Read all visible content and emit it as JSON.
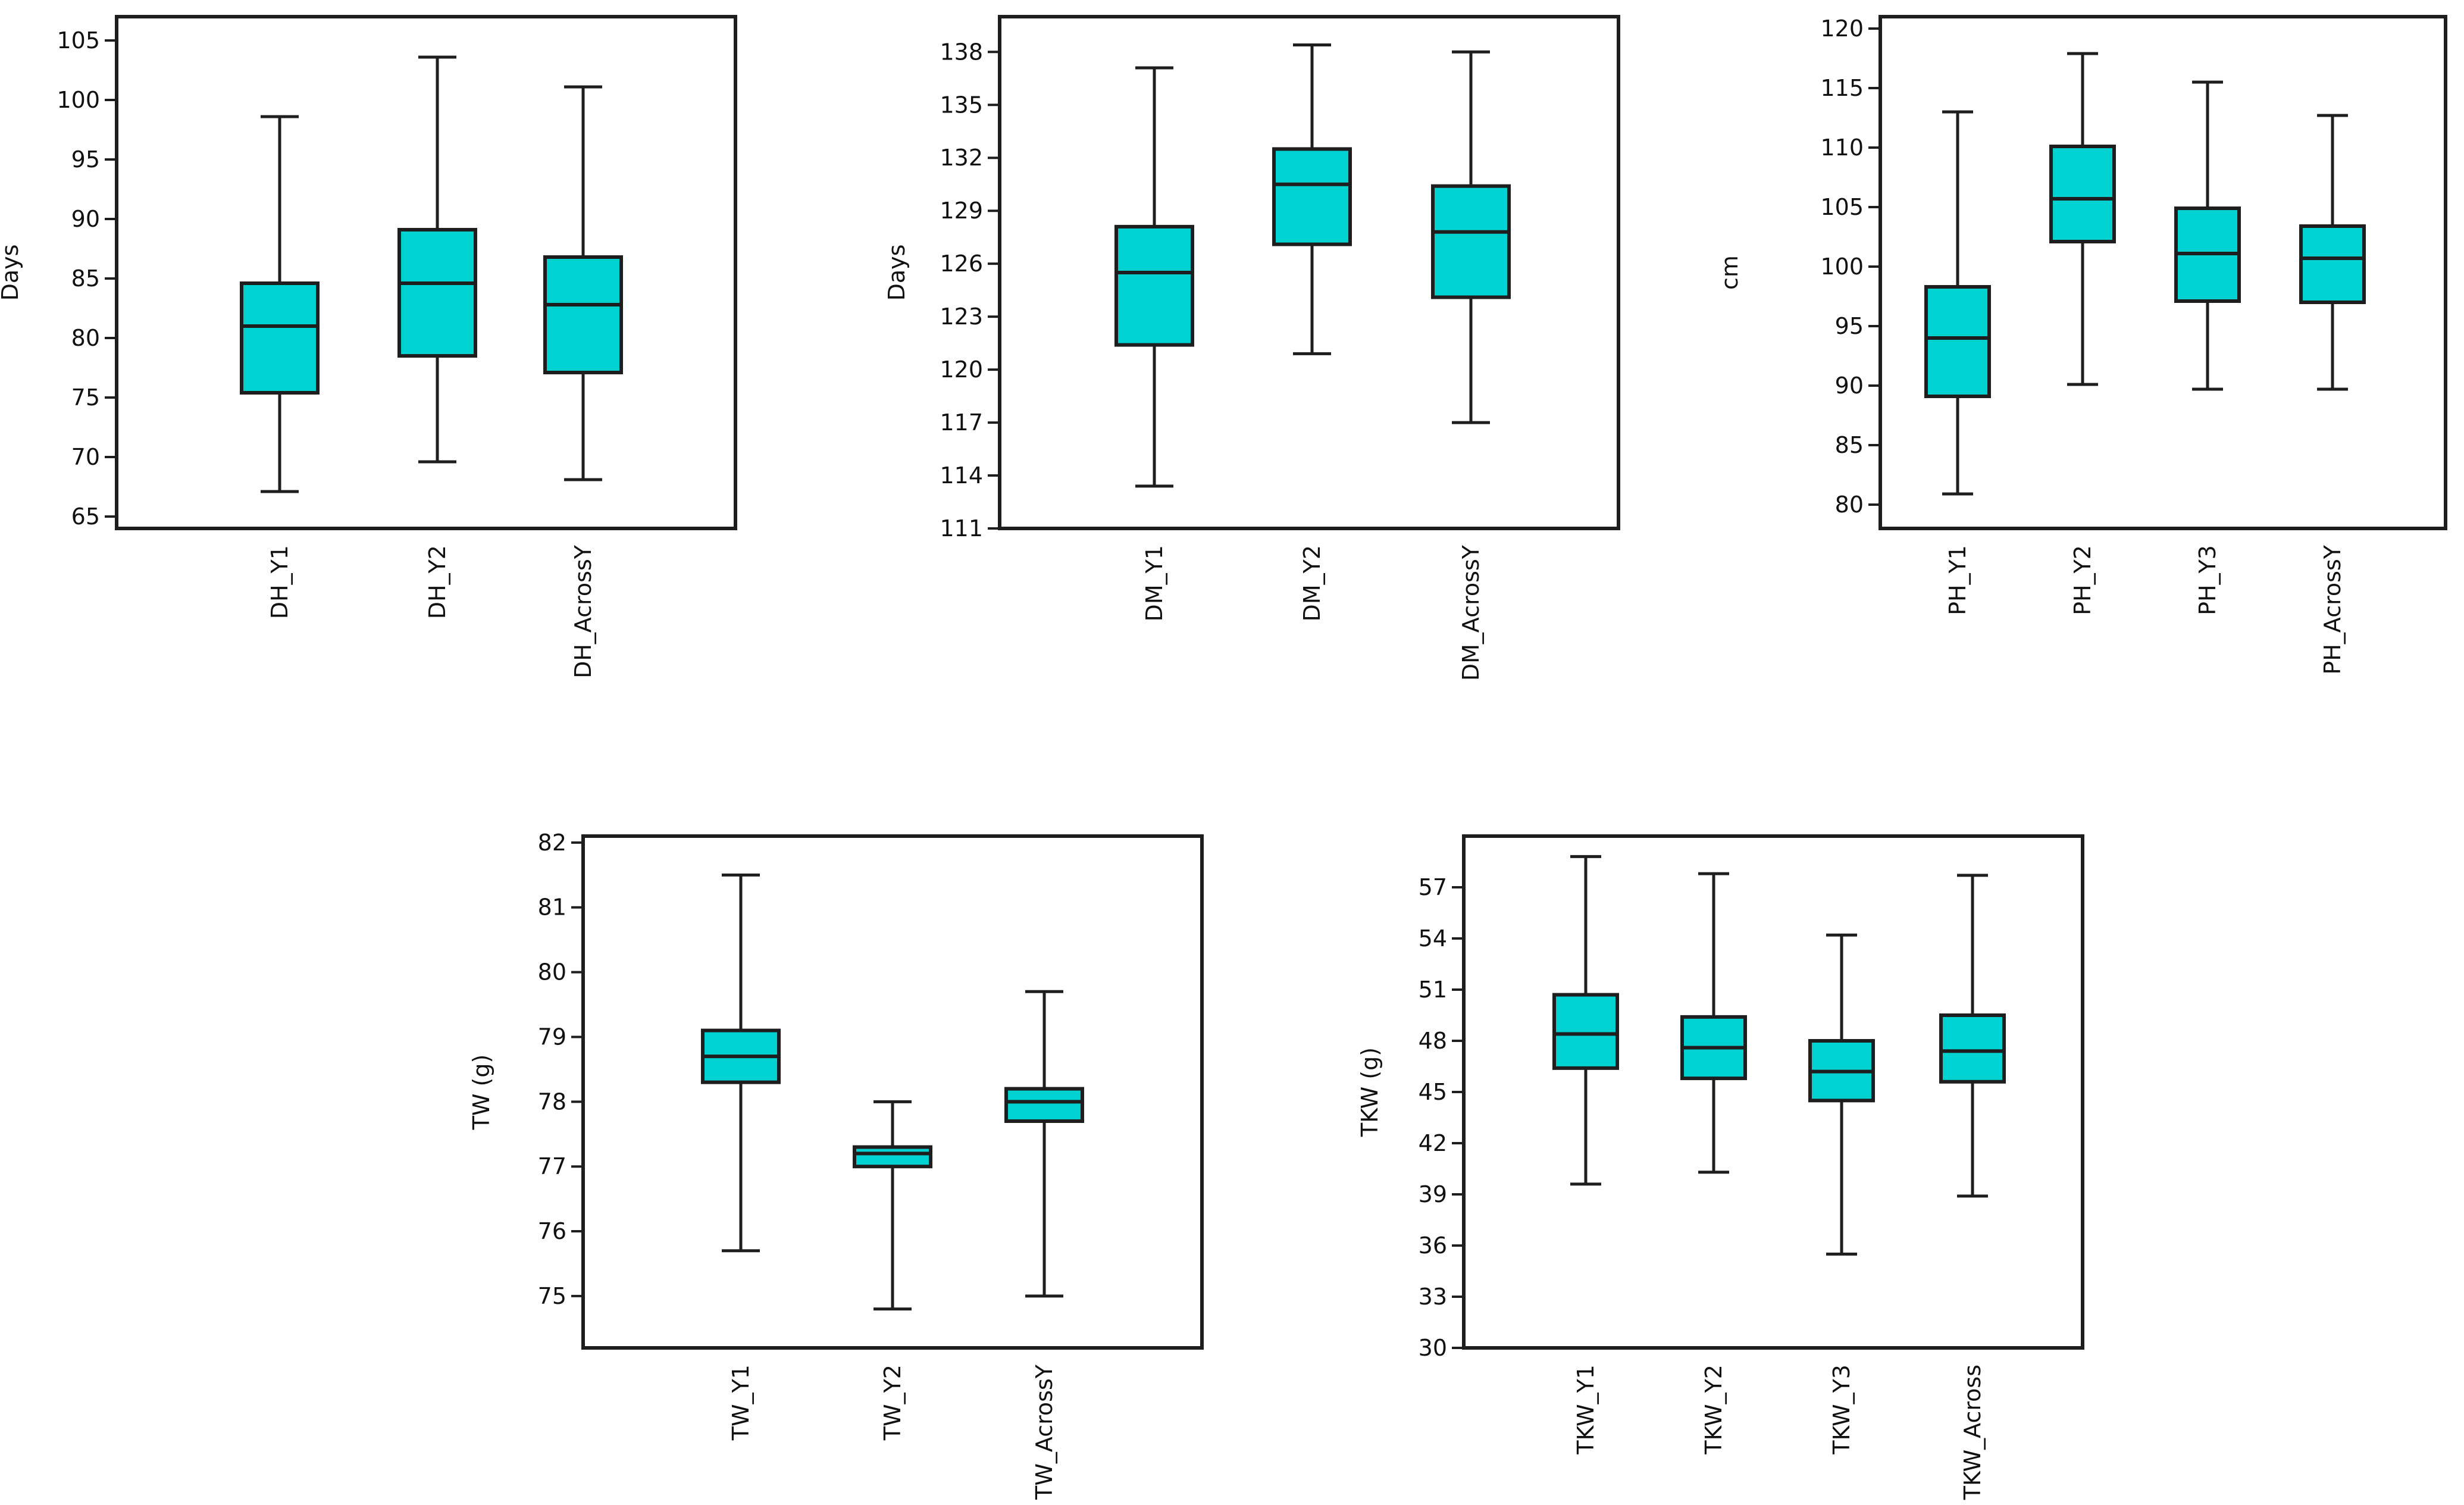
{
  "chart_data": [
    {
      "type": "box",
      "ylabel": "Days",
      "ylim": [
        64,
        107
      ],
      "yticks": [
        65,
        70,
        75,
        80,
        85,
        90,
        95,
        100,
        105
      ],
      "categories": [
        "DH_Y1",
        "DH_Y2",
        "DH_AcrossY"
      ],
      "boxes": [
        {
          "min": 67.1,
          "q1": 75.4,
          "median": 81.0,
          "q3": 84.6,
          "max": 98.6
        },
        {
          "min": 69.6,
          "q1": 78.5,
          "median": 84.6,
          "q3": 89.1,
          "max": 103.6
        },
        {
          "min": 68.1,
          "q1": 77.1,
          "median": 82.8,
          "q3": 86.8,
          "max": 101.1
        }
      ]
    },
    {
      "type": "box",
      "ylabel": "Days",
      "ylim": [
        111,
        140
      ],
      "yticks": [
        111,
        114,
        117,
        120,
        123,
        126,
        129,
        132,
        135,
        138
      ],
      "categories": [
        "DM_Y1",
        "DM_Y2",
        "DM_AcrossY"
      ],
      "boxes": [
        {
          "min": 113.4,
          "q1": 121.4,
          "median": 125.5,
          "q3": 128.1,
          "max": 137.1
        },
        {
          "min": 120.9,
          "q1": 127.1,
          "median": 130.5,
          "q3": 132.5,
          "max": 138.4
        },
        {
          "min": 117.0,
          "q1": 124.1,
          "median": 127.8,
          "q3": 130.4,
          "max": 138.0
        }
      ]
    },
    {
      "type": "box",
      "ylabel": "cm",
      "ylim": [
        78,
        121
      ],
      "yticks": [
        80,
        85,
        90,
        95,
        100,
        105,
        110,
        115,
        120
      ],
      "categories": [
        "PH_Y1",
        "PH_Y2",
        "PH_Y3",
        "PH_AcrossY"
      ],
      "boxes": [
        {
          "min": 80.9,
          "q1": 89.1,
          "median": 94.0,
          "q3": 98.3,
          "max": 113.0
        },
        {
          "min": 90.1,
          "q1": 102.1,
          "median": 105.7,
          "q3": 110.1,
          "max": 117.9
        },
        {
          "min": 89.7,
          "q1": 97.1,
          "median": 101.1,
          "q3": 104.9,
          "max": 115.5
        },
        {
          "min": 89.7,
          "q1": 97.0,
          "median": 100.7,
          "q3": 103.4,
          "max": 112.7
        }
      ]
    },
    {
      "type": "box",
      "ylabel": "TW (g)",
      "ylim": [
        74.2,
        82.1
      ],
      "yticks": [
        75,
        76,
        77,
        78,
        79,
        80,
        81,
        82
      ],
      "categories": [
        "TW_Y1",
        "TW_Y2",
        "TW_AcrossY"
      ],
      "boxes": [
        {
          "min": 75.7,
          "q1": 78.3,
          "median": 78.7,
          "q3": 79.1,
          "max": 81.5
        },
        {
          "min": 74.8,
          "q1": 77.0,
          "median": 77.2,
          "q3": 77.3,
          "max": 78.0
        },
        {
          "min": 75.0,
          "q1": 77.7,
          "median": 78.0,
          "q3": 78.2,
          "max": 79.7
        }
      ]
    },
    {
      "type": "box",
      "ylabel": "TKW (g)",
      "ylim": [
        30,
        60
      ],
      "yticks": [
        30,
        33,
        36,
        39,
        42,
        45,
        48,
        51,
        54,
        57
      ],
      "categories": [
        "TKW_Y1",
        "TKW_Y2",
        "TKW_Y3",
        "TKW_Across"
      ],
      "boxes": [
        {
          "min": 39.6,
          "q1": 46.4,
          "median": 48.4,
          "q3": 50.7,
          "max": 58.8
        },
        {
          "min": 40.3,
          "q1": 45.8,
          "median": 47.6,
          "q3": 49.4,
          "max": 57.8
        },
        {
          "min": 35.5,
          "q1": 44.5,
          "median": 46.2,
          "q3": 48.0,
          "max": 54.2
        },
        {
          "min": 38.9,
          "q1": 45.6,
          "median": 47.4,
          "q3": 49.5,
          "max": 57.7
        }
      ]
    }
  ]
}
